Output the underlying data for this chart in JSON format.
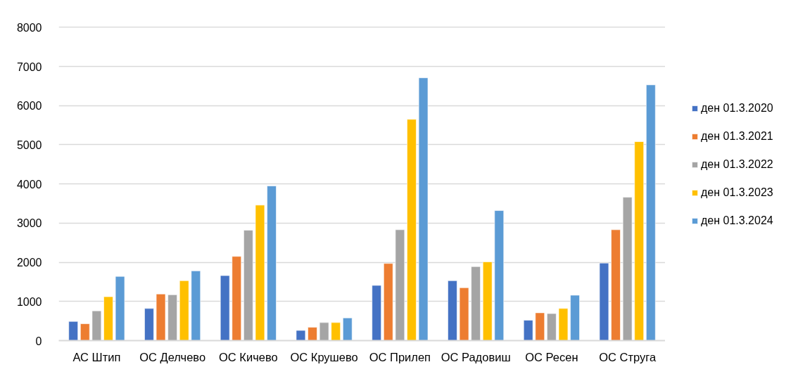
{
  "chart_data": {
    "type": "bar",
    "categories": [
      "АС Штип",
      "ОС Делчево",
      "ОС Кичево",
      "ОС Крушево",
      "ОС Прилеп",
      "ОС Радовиш",
      "ОС Ресен",
      "ОС Струга"
    ],
    "series": [
      {
        "name": "ден 01.3.2020",
        "color": "#4472c4",
        "values": [
          490,
          820,
          1660,
          260,
          1410,
          1530,
          520,
          1980
        ]
      },
      {
        "name": "ден 01.3.2021",
        "color": "#ed7d31",
        "values": [
          430,
          1190,
          2150,
          340,
          1970,
          1350,
          710,
          2830
        ]
      },
      {
        "name": "ден 01.3.2022",
        "color": "#a5a5a5",
        "values": [
          760,
          1170,
          2820,
          460,
          2830,
          1890,
          690,
          3660
        ]
      },
      {
        "name": "ден 01.3.2023",
        "color": "#ffc000",
        "values": [
          1120,
          1530,
          3460,
          460,
          5650,
          2010,
          820,
          5080
        ]
      },
      {
        "name": "ден 01.3.2024",
        "color": "#5b9bd5",
        "values": [
          1640,
          1780,
          3950,
          580,
          6710,
          3320,
          1160,
          6530
        ]
      }
    ],
    "ylim": [
      0,
      8000
    ],
    "yticks": [
      0,
      1000,
      2000,
      3000,
      4000,
      5000,
      6000,
      7000,
      8000
    ],
    "grid": "y",
    "legend": "right"
  }
}
